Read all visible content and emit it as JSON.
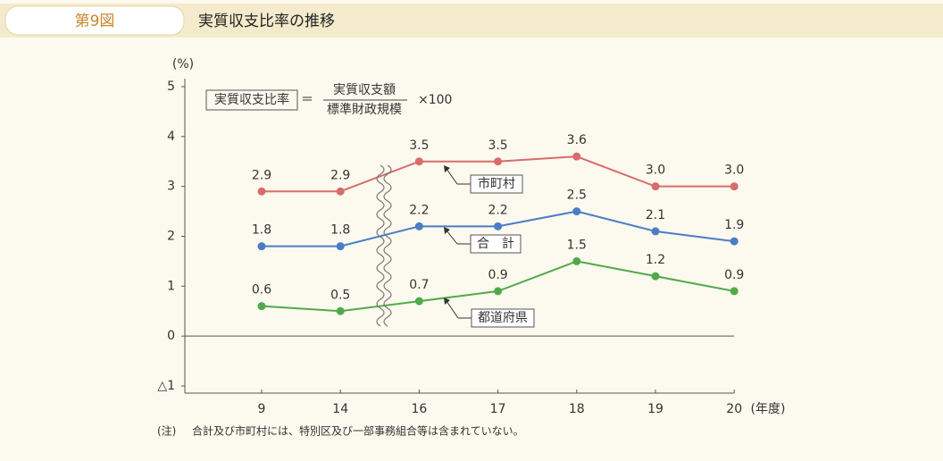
{
  "header": {
    "figure": "第9図",
    "title": "実質収支比率の推移"
  },
  "chart_data": {
    "type": "line",
    "y_unit": "(%)",
    "x_unit": "(年度)",
    "categories": [
      "9",
      "14",
      "16",
      "17",
      "18",
      "19",
      "20"
    ],
    "series": [
      {
        "name": "市町村",
        "color": "#d96b6c",
        "values": [
          2.9,
          2.9,
          3.5,
          3.5,
          3.6,
          3.0,
          3.0
        ],
        "value_labels": [
          "2.9",
          "2.9",
          "3.5",
          "3.5",
          "3.6",
          "3.0",
          "3.0"
        ]
      },
      {
        "name": "合　計",
        "color": "#4a7dc6",
        "values": [
          1.8,
          1.8,
          2.2,
          2.2,
          2.5,
          2.1,
          1.9
        ],
        "value_labels": [
          "1.8",
          "1.8",
          "2.2",
          "2.2",
          "2.5",
          "2.1",
          "1.9"
        ]
      },
      {
        "name": "都道府県",
        "color": "#52a94b",
        "values": [
          0.6,
          0.5,
          0.7,
          0.9,
          1.5,
          1.2,
          0.9
        ],
        "value_labels": [
          "0.6",
          "0.5",
          "0.7",
          "0.9",
          "1.5",
          "1.2",
          "0.9"
        ]
      }
    ],
    "ylim": [
      -1,
      5
    ],
    "yticks": [
      {
        "value": -1,
        "label": "△1"
      },
      0,
      1,
      2,
      3,
      4,
      5
    ],
    "formula": {
      "lhs": "実質収支比率",
      "eq": "＝",
      "numerator": "実質収支額",
      "denominator": "標準財政規模",
      "multiplier": "×100"
    },
    "note": {
      "mark": "(注)",
      "text": "合計及び市町村には、特別区及び一部事務組合等は含まれていない。"
    }
  }
}
